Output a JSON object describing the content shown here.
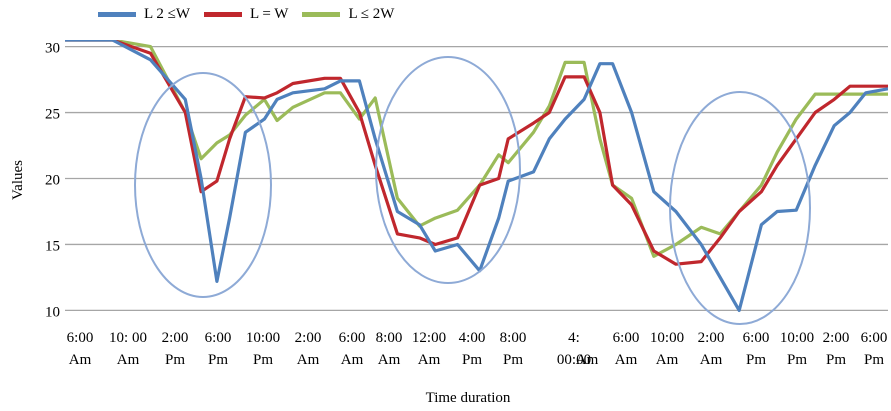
{
  "chart_data": {
    "type": "line",
    "xlabel": "Time duration",
    "ylabel": "Values",
    "ylim": [
      9.5,
      30.5
    ],
    "yticks": [
      10,
      15,
      20,
      25,
      30
    ],
    "grid": true,
    "legend_position": "top-left",
    "categories": [
      [
        "6:00",
        "Am"
      ],
      [
        "10: 00",
        "Am"
      ],
      [
        "2:00",
        "Pm"
      ],
      [
        "6:00",
        "Pm"
      ],
      [
        "10:00",
        "Pm"
      ],
      [
        "2:00",
        "Am"
      ],
      [
        "6:00",
        "Am"
      ],
      [
        "8:00",
        "Am"
      ],
      [
        "12:00",
        "Am"
      ],
      [
        "4:00",
        "Pm"
      ],
      [
        "8:00",
        "Pm"
      ],
      [
        "4:",
        "00:00"
      ],
      [
        "",
        "Am"
      ],
      [
        "6:00",
        "Am"
      ],
      [
        "10:00",
        "Am"
      ],
      [
        "2:00",
        "Am"
      ],
      [
        "6:00",
        "Pm"
      ],
      [
        "10:00",
        "Pm"
      ],
      [
        "2:00",
        "Pm"
      ],
      [
        "6:00",
        "Pm"
      ]
    ],
    "x": [
      0,
      1.5,
      2.7,
      3.8,
      4.3,
      4.8,
      5.2,
      5.7,
      6.3,
      6.7,
      7.2,
      8.2,
      8.7,
      9.3,
      9.8,
      10.5,
      11.2,
      11.7,
      12.4,
      13.1,
      13.7,
      14.0,
      14.8,
      15.3,
      15.8,
      16.4,
      16.9,
      17.3,
      17.9,
      18.6,
      19.3,
      20.1,
      20.7,
      21.3,
      22.0,
      22.5,
      23.1,
      23.7,
      24.3,
      24.8,
      25.3,
      26.0
    ],
    "series": [
      {
        "name": "L 2 ≤W",
        "color": "#4f81bd",
        "values": [
          31.5,
          31.0,
          29.0,
          26.0,
          20.0,
          12.2,
          17.0,
          23.5,
          24.5,
          26.0,
          26.5,
          26.8,
          27.4,
          27.4,
          23.0,
          17.5,
          16.5,
          14.5,
          15.0,
          13.0,
          17.0,
          19.8,
          20.5,
          23.0,
          24.5,
          26.0,
          28.7,
          28.7,
          25.0,
          19.0,
          17.5,
          15.0,
          12.5,
          10.0,
          16.5,
          17.5,
          17.6,
          21.0,
          24.0,
          25.0,
          26.5,
          26.8
        ]
      },
      {
        "name": "L = W",
        "color": "#c0272d",
        "values": [
          31.5,
          31.0,
          29.5,
          25.0,
          19.0,
          19.8,
          23.0,
          26.2,
          26.1,
          26.5,
          27.2,
          27.6,
          27.6,
          25.0,
          21.0,
          15.8,
          15.5,
          15.0,
          15.5,
          19.5,
          20.0,
          23.0,
          24.2,
          25.0,
          27.7,
          27.7,
          25.0,
          19.5,
          18.0,
          14.5,
          13.5,
          13.7,
          15.5,
          17.5,
          19.0,
          21.0,
          23.0,
          25.0,
          26.0,
          27.0,
          27.0,
          27.0
        ]
      },
      {
        "name": "L ≤ 2W",
        "color": "#9bbb59",
        "values": [
          31.5,
          31.0,
          30.0,
          25.0,
          21.5,
          22.7,
          23.3,
          24.8,
          26.0,
          24.4,
          25.4,
          26.5,
          26.5,
          24.5,
          26.1,
          18.5,
          16.4,
          17.0,
          17.6,
          19.5,
          21.8,
          21.2,
          23.5,
          25.5,
          28.8,
          28.8,
          23.0,
          19.5,
          18.5,
          14.1,
          15.0,
          16.3,
          15.8,
          17.5,
          19.5,
          22.0,
          24.5,
          26.4,
          26.4,
          26.4,
          26.4,
          26.4
        ]
      }
    ],
    "annotations": [
      "ellipse-1",
      "ellipse-2",
      "ellipse-3"
    ]
  }
}
